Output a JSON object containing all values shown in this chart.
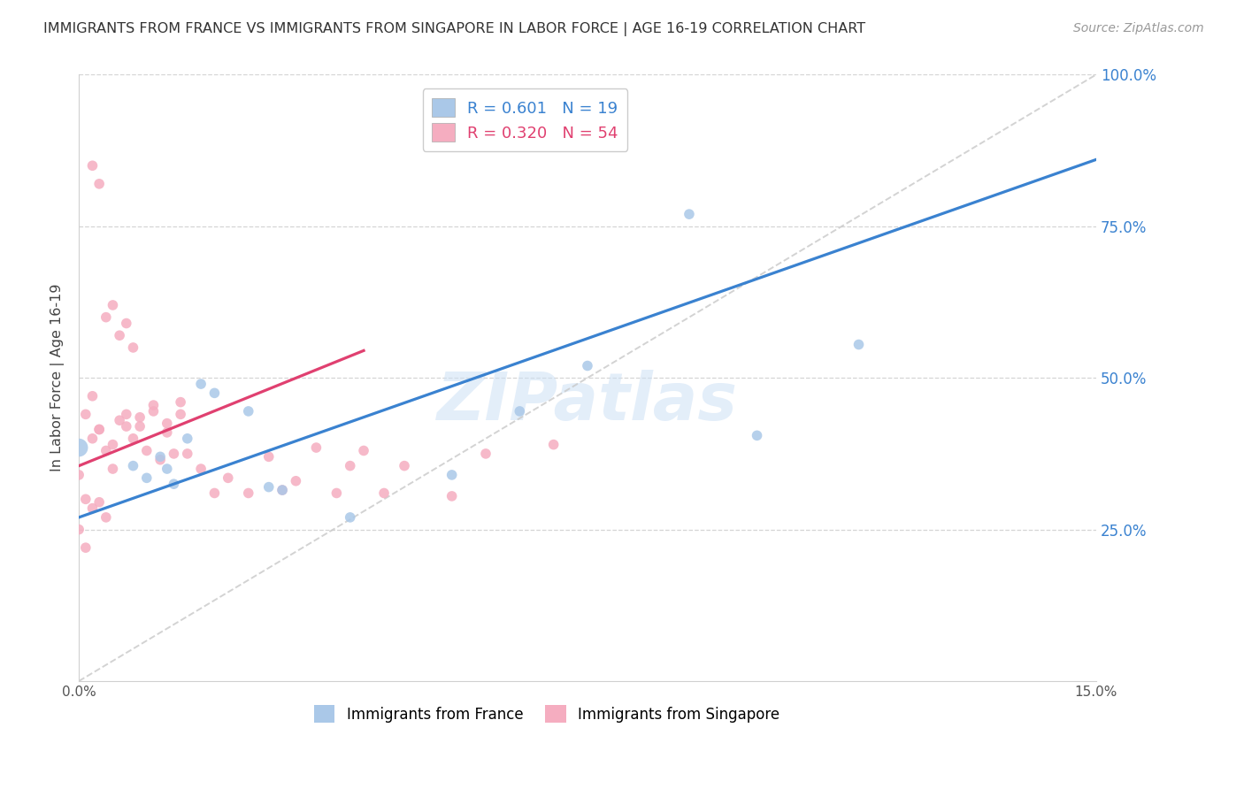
{
  "title": "IMMIGRANTS FROM FRANCE VS IMMIGRANTS FROM SINGAPORE IN LABOR FORCE | AGE 16-19 CORRELATION CHART",
  "source": "Source: ZipAtlas.com",
  "ylabel": "In Labor Force | Age 16-19",
  "xlim": [
    0.0,
    0.15
  ],
  "ylim": [
    0.0,
    1.0
  ],
  "france_R": 0.601,
  "france_N": 19,
  "singapore_R": 0.32,
  "singapore_N": 54,
  "france_color": "#aac8e8",
  "singapore_color": "#f5adc0",
  "france_line_color": "#3a82d0",
  "singapore_line_color": "#e04070",
  "diagonal_color": "#c8c8c8",
  "watermark": "ZIPatlas",
  "france_trend_x0": 0.0,
  "france_trend_y0": 0.27,
  "france_trend_x1": 0.15,
  "france_trend_y1": 0.86,
  "singapore_trend_x0": 0.0,
  "singapore_trend_y0": 0.355,
  "singapore_trend_x1": 0.042,
  "singapore_trend_y1": 0.545,
  "france_x": [
    0.0,
    0.008,
    0.01,
    0.012,
    0.014,
    0.016,
    0.02,
    0.025,
    0.028,
    0.03,
    0.04,
    0.055,
    0.065,
    0.075,
    0.09,
    0.1,
    0.115,
    0.013,
    0.018
  ],
  "france_y": [
    0.385,
    0.355,
    0.335,
    0.37,
    0.325,
    0.4,
    0.475,
    0.445,
    0.32,
    0.315,
    0.27,
    0.34,
    0.445,
    0.52,
    0.77,
    0.405,
    0.555,
    0.35,
    0.49
  ],
  "france_sizes": [
    220,
    70,
    70,
    70,
    70,
    70,
    70,
    70,
    70,
    70,
    70,
    70,
    70,
    70,
    70,
    70,
    70,
    70,
    70
  ],
  "singapore_x": [
    0.0,
    0.001,
    0.002,
    0.003,
    0.004,
    0.005,
    0.006,
    0.007,
    0.008,
    0.009,
    0.01,
    0.011,
    0.012,
    0.013,
    0.014,
    0.015,
    0.002,
    0.003,
    0.004,
    0.005,
    0.006,
    0.007,
    0.008,
    0.0,
    0.001,
    0.002,
    0.003,
    0.004,
    0.016,
    0.018,
    0.02,
    0.022,
    0.025,
    0.028,
    0.03,
    0.032,
    0.035,
    0.038,
    0.04,
    0.042,
    0.045,
    0.048,
    0.055,
    0.06,
    0.001,
    0.002,
    0.003,
    0.005,
    0.007,
    0.009,
    0.011,
    0.013,
    0.015,
    0.07
  ],
  "singapore_y": [
    0.34,
    0.3,
    0.4,
    0.415,
    0.38,
    0.35,
    0.43,
    0.44,
    0.4,
    0.42,
    0.38,
    0.445,
    0.365,
    0.41,
    0.375,
    0.44,
    0.85,
    0.82,
    0.6,
    0.62,
    0.57,
    0.59,
    0.55,
    0.25,
    0.22,
    0.285,
    0.295,
    0.27,
    0.375,
    0.35,
    0.31,
    0.335,
    0.31,
    0.37,
    0.315,
    0.33,
    0.385,
    0.31,
    0.355,
    0.38,
    0.31,
    0.355,
    0.305,
    0.375,
    0.44,
    0.47,
    0.415,
    0.39,
    0.42,
    0.435,
    0.455,
    0.425,
    0.46,
    0.39
  ],
  "singapore_sizes": [
    70,
    70,
    70,
    70,
    70,
    70,
    70,
    70,
    70,
    70,
    70,
    70,
    70,
    70,
    70,
    70,
    70,
    70,
    70,
    70,
    70,
    70,
    70,
    70,
    70,
    70,
    70,
    70,
    70,
    70,
    70,
    70,
    70,
    70,
    70,
    70,
    70,
    70,
    70,
    70,
    70,
    70,
    70,
    70,
    70,
    70,
    70,
    70,
    70,
    70,
    70,
    70,
    70,
    70
  ]
}
